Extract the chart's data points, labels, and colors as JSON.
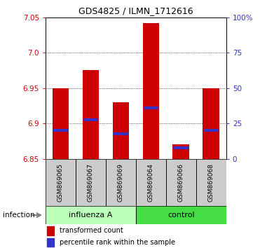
{
  "title": "GDS4825 / ILMN_1712616",
  "samples": [
    "GSM869065",
    "GSM869067",
    "GSM869069",
    "GSM869064",
    "GSM869066",
    "GSM869068"
  ],
  "groups": [
    "influenza A",
    "influenza A",
    "influenza A",
    "control",
    "control",
    "control"
  ],
  "group_labels": [
    "influenza A",
    "control"
  ],
  "bar_bottom": 6.85,
  "red_tops": [
    6.95,
    6.975,
    6.93,
    7.042,
    6.87,
    6.95
  ],
  "blue_values": [
    6.89,
    6.905,
    6.885,
    6.922,
    6.865,
    6.89
  ],
  "ylim": [
    6.85,
    7.05
  ],
  "yticks_left": [
    6.85,
    6.9,
    6.95,
    7.0,
    7.05
  ],
  "yticks_right_pct": [
    0,
    25,
    50,
    75,
    100
  ],
  "right_tick_labels": [
    "0",
    "25",
    "50",
    "75",
    "100%"
  ],
  "bar_color": "#CC0000",
  "blue_color": "#3333CC",
  "legend_red": "transformed count",
  "legend_blue": "percentile rank within the sample",
  "infection_label": "infection",
  "influenza_bg": "#BBFFBB",
  "control_bg": "#44DD44",
  "sample_box_color": "#CCCCCC"
}
